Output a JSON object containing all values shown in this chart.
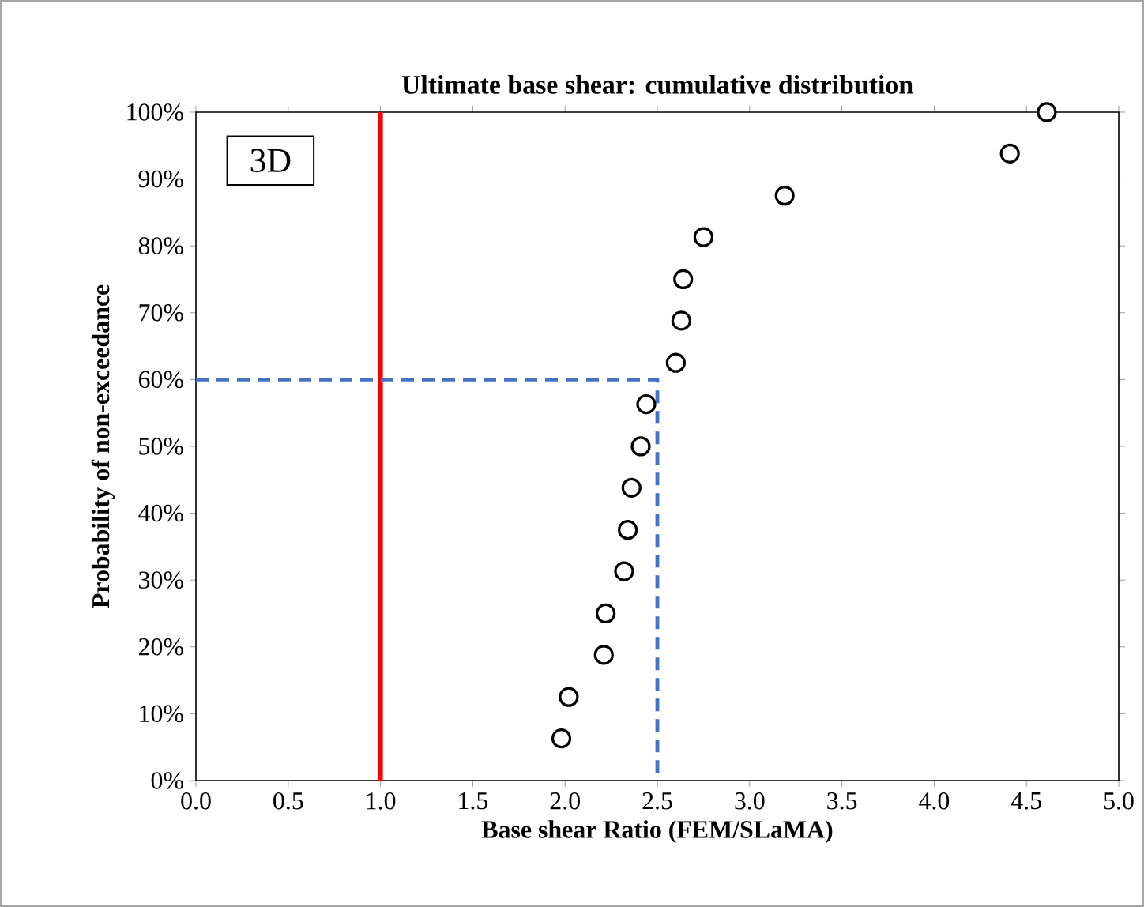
{
  "chart_data": {
    "type": "scatter",
    "title": "Ultimate base shear: cumulative distribution",
    "xlabel": "Base shear Ratio (FEM/SLaMA)",
    "ylabel": "Probability  of non-exceedance",
    "series": [
      {
        "color": "#000000",
        "marker": "circle",
        "x": [
          1.98,
          2.02,
          2.21,
          2.22,
          2.32,
          2.34,
          2.36,
          2.41,
          2.44,
          2.6,
          2.63,
          2.64,
          2.75,
          3.19,
          4.41,
          4.61
        ],
        "values": [
          6.3,
          12.5,
          18.8,
          25,
          31.3,
          37.5,
          43.8,
          50,
          56.3,
          62.5,
          68.8,
          75,
          81.3,
          87.5,
          93.8,
          100
        ]
      },
      {
        "type": "line",
        "color": "#4472c4",
        "line_style": "dashed",
        "marker": "none",
        "x": [
          0,
          2.5,
          2.5
        ],
        "values": [
          60,
          60,
          0
        ]
      }
    ],
    "ref_lines": [
      {
        "axis": "x",
        "value": 1,
        "color": "#ff0000"
      }
    ],
    "annotations": [
      "3D"
    ],
    "xlim": [
      0,
      5
    ],
    "xticks": [
      {
        "value": 0,
        "label": "0.0"
      },
      {
        "value": 0.5,
        "label": "0.5"
      },
      {
        "value": 1,
        "label": "1.0"
      },
      {
        "value": 1.5,
        "label": "1.5"
      },
      {
        "value": 2,
        "label": "2.0"
      },
      {
        "value": 2.5,
        "label": "2.5"
      },
      {
        "value": 3,
        "label": "3.0"
      },
      {
        "value": 3.5,
        "label": "3.5"
      },
      {
        "value": 4,
        "label": "4.0"
      },
      {
        "value": 4.5,
        "label": "4.5"
      },
      {
        "value": 5,
        "label": "5.0"
      }
    ],
    "ylim": [
      0,
      100
    ],
    "yticks": [
      {
        "value": 0,
        "label": "0%"
      },
      {
        "value": 10,
        "label": "10%"
      },
      {
        "value": 20,
        "label": "20%"
      },
      {
        "value": 30,
        "label": "30%"
      },
      {
        "value": 40,
        "label": "40%"
      },
      {
        "value": 50,
        "label": "50%"
      },
      {
        "value": 60,
        "label": "60%"
      },
      {
        "value": 70,
        "label": "70%"
      },
      {
        "value": 80,
        "label": "80%"
      },
      {
        "value": 90,
        "label": "90%"
      },
      {
        "value": 100,
        "label": "100%"
      }
    ],
    "grid": false
  }
}
